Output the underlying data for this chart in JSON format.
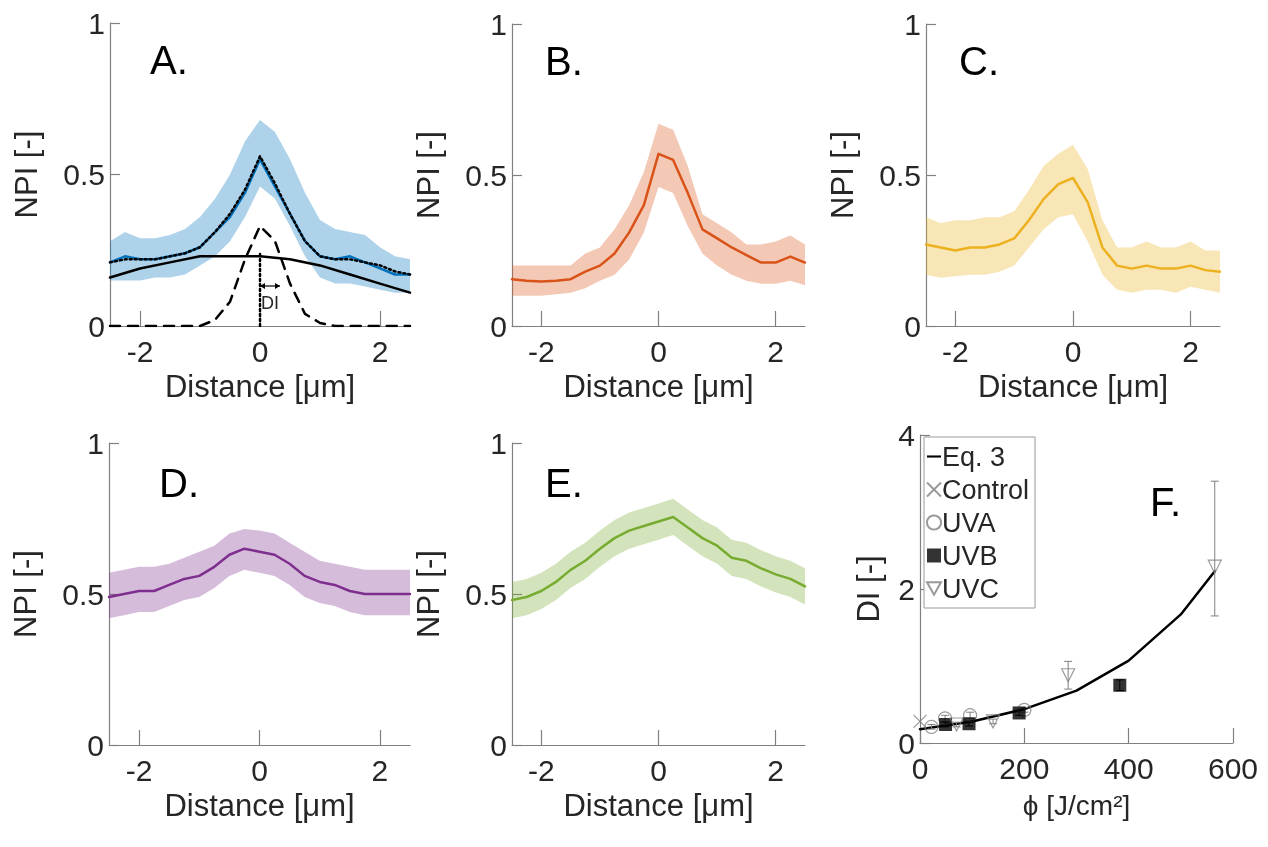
{
  "chart_data": [
    {
      "type": "line",
      "title": "A.",
      "xlabel": "Distance [μm]",
      "ylabel": "NPI [-]",
      "xlim": [
        -2.5,
        2.5
      ],
      "xticks": [
        -2,
        0,
        2
      ],
      "ylim": [
        0,
        1
      ],
      "yticks": [
        0,
        0.5,
        1
      ],
      "x": [
        -2.5,
        -2.25,
        -2,
        -1.75,
        -1.5,
        -1.25,
        -1,
        -0.75,
        -0.5,
        -0.25,
        0,
        0.25,
        0.5,
        0.75,
        1,
        1.25,
        1.5,
        1.75,
        2,
        2.25,
        2.5
      ],
      "annotations": [
        "DI"
      ],
      "series": [
        {
          "color": "#0072bd",
          "values": [
            0.21,
            0.23,
            0.22,
            0.22,
            0.23,
            0.24,
            0.26,
            0.31,
            0.36,
            0.44,
            0.55,
            0.46,
            0.37,
            0.28,
            0.23,
            0.22,
            0.23,
            0.21,
            0.19,
            0.17,
            0.17
          ],
          "lower": [
            0.15,
            0.15,
            0.15,
            0.16,
            0.16,
            0.17,
            0.2,
            0.23,
            0.28,
            0.36,
            0.46,
            0.42,
            0.33,
            0.23,
            0.16,
            0.14,
            0.14,
            0.13,
            0.12,
            0.11,
            0.11
          ],
          "upper": [
            0.28,
            0.31,
            0.29,
            0.29,
            0.3,
            0.32,
            0.36,
            0.42,
            0.5,
            0.61,
            0.68,
            0.64,
            0.55,
            0.44,
            0.35,
            0.32,
            0.31,
            0.3,
            0.26,
            0.23,
            0.22
          ]
        },
        {
          "color": "#000000",
          "line_style": "dotted",
          "values": [
            0.21,
            0.22,
            0.22,
            0.22,
            0.23,
            0.24,
            0.26,
            0.31,
            0.37,
            0.45,
            0.56,
            0.47,
            0.37,
            0.28,
            0.23,
            0.22,
            0.22,
            0.21,
            0.2,
            0.18,
            0.17
          ]
        },
        {
          "color": "#000000",
          "line_style": "solid",
          "x": [
            -2.5,
            -2,
            -1.5,
            -1,
            -0.5,
            0,
            0.5,
            1,
            1.5,
            2,
            2.5
          ],
          "values": [
            0.16,
            0.19,
            0.21,
            0.23,
            0.23,
            0.23,
            0.22,
            0.2,
            0.17,
            0.14,
            0.11
          ]
        },
        {
          "color": "#000000",
          "line_style": "dashed",
          "x": [
            -2.5,
            -1,
            -0.75,
            -0.5,
            -0.25,
            0,
            0.25,
            0.5,
            0.75,
            1,
            1.25,
            2.5
          ],
          "values": [
            0,
            0,
            0.02,
            0.08,
            0.22,
            0.33,
            0.28,
            0.14,
            0.04,
            0.01,
            0,
            0
          ]
        },
        {
          "color": "#000000",
          "line_style": "dotted",
          "x": [
            0,
            0
          ],
          "values": [
            0,
            0.24
          ]
        }
      ]
    },
    {
      "type": "line",
      "title": "B.",
      "xlabel": "Distance [μm]",
      "ylabel": "NPI [-]",
      "xlim": [
        -2.5,
        2.5
      ],
      "xticks": [
        -2,
        0,
        2
      ],
      "ylim": [
        0,
        1
      ],
      "yticks": [
        0,
        0.5,
        1
      ],
      "x": [
        -2.5,
        -2.25,
        -2,
        -1.75,
        -1.5,
        -1.25,
        -1,
        -0.75,
        -0.5,
        -0.25,
        0,
        0.25,
        0.5,
        0.75,
        1,
        1.25,
        1.5,
        1.75,
        2,
        2.25,
        2.5
      ],
      "series": [
        {
          "color": "#d95319",
          "values": [
            0.155,
            0.15,
            0.147,
            0.15,
            0.155,
            0.18,
            0.2,
            0.24,
            0.31,
            0.4,
            0.57,
            0.55,
            0.44,
            0.32,
            0.29,
            0.26,
            0.235,
            0.21,
            0.21,
            0.23,
            0.21
          ],
          "lower": [
            0.1,
            0.1,
            0.1,
            0.105,
            0.11,
            0.125,
            0.15,
            0.17,
            0.22,
            0.31,
            0.46,
            0.44,
            0.33,
            0.24,
            0.2,
            0.17,
            0.15,
            0.14,
            0.14,
            0.15,
            0.135
          ],
          "upper": [
            0.2,
            0.2,
            0.2,
            0.2,
            0.2,
            0.24,
            0.26,
            0.32,
            0.4,
            0.51,
            0.67,
            0.65,
            0.53,
            0.37,
            0.34,
            0.31,
            0.27,
            0.27,
            0.28,
            0.3,
            0.27
          ]
        }
      ]
    },
    {
      "type": "line",
      "title": "C.",
      "xlabel": "Distance [μm]",
      "ylabel": "NPI [-]",
      "xlim": [
        -2.5,
        2.5
      ],
      "xticks": [
        -2,
        0,
        2
      ],
      "ylim": [
        0,
        1
      ],
      "yticks": [
        0,
        0.5,
        1
      ],
      "x": [
        -2.5,
        -2.25,
        -2,
        -1.75,
        -1.5,
        -1.25,
        -1,
        -0.75,
        -0.5,
        -0.25,
        0,
        0.25,
        0.5,
        0.75,
        1,
        1.25,
        1.5,
        1.75,
        2,
        2.25,
        2.5
      ],
      "series": [
        {
          "color": "#edb120",
          "values": [
            0.27,
            0.26,
            0.25,
            0.26,
            0.26,
            0.27,
            0.29,
            0.35,
            0.42,
            0.47,
            0.49,
            0.41,
            0.26,
            0.2,
            0.19,
            0.2,
            0.19,
            0.19,
            0.2,
            0.185,
            0.18
          ],
          "lower": [
            0.17,
            0.16,
            0.165,
            0.17,
            0.17,
            0.18,
            0.2,
            0.26,
            0.32,
            0.36,
            0.37,
            0.28,
            0.17,
            0.12,
            0.11,
            0.12,
            0.12,
            0.11,
            0.13,
            0.12,
            0.11
          ],
          "upper": [
            0.36,
            0.34,
            0.35,
            0.35,
            0.36,
            0.36,
            0.38,
            0.45,
            0.53,
            0.57,
            0.6,
            0.52,
            0.35,
            0.26,
            0.26,
            0.28,
            0.26,
            0.26,
            0.28,
            0.25,
            0.25
          ]
        }
      ]
    },
    {
      "type": "line",
      "title": "D.",
      "xlabel": "Distance [μm]",
      "ylabel": "NPI [-]",
      "xlim": [
        -2.5,
        2.5
      ],
      "xticks": [
        -2,
        0,
        2
      ],
      "ylim": [
        0,
        1
      ],
      "yticks": [
        0,
        0.5,
        1
      ],
      "x": [
        -2.5,
        -2.25,
        -2,
        -1.75,
        -1.5,
        -1.25,
        -1,
        -0.75,
        -0.5,
        -0.25,
        0,
        0.25,
        0.5,
        0.75,
        1,
        1.25,
        1.5,
        1.75,
        2,
        2.25,
        2.5
      ],
      "series": [
        {
          "color": "#7e2f8e",
          "values": [
            0.49,
            0.5,
            0.51,
            0.51,
            0.53,
            0.55,
            0.56,
            0.59,
            0.63,
            0.65,
            0.64,
            0.63,
            0.6,
            0.56,
            0.54,
            0.53,
            0.51,
            0.5,
            0.5,
            0.5,
            0.5
          ],
          "lower": [
            0.42,
            0.43,
            0.44,
            0.44,
            0.46,
            0.48,
            0.49,
            0.52,
            0.56,
            0.58,
            0.57,
            0.56,
            0.53,
            0.49,
            0.47,
            0.46,
            0.44,
            0.43,
            0.43,
            0.43,
            0.43
          ],
          "upper": [
            0.57,
            0.58,
            0.59,
            0.59,
            0.6,
            0.62,
            0.64,
            0.66,
            0.7,
            0.715,
            0.71,
            0.7,
            0.67,
            0.64,
            0.61,
            0.6,
            0.59,
            0.58,
            0.58,
            0.58,
            0.58
          ]
        }
      ]
    },
    {
      "type": "line",
      "title": "E.",
      "xlabel": "Distance [μm]",
      "ylabel": "NPI [-]",
      "xlim": [
        -2.5,
        2.5
      ],
      "xticks": [
        -2,
        0,
        2
      ],
      "ylim": [
        0,
        1
      ],
      "yticks": [
        0,
        0.5,
        1
      ],
      "x": [
        -2.5,
        -2.25,
        -2,
        -1.75,
        -1.5,
        -1.25,
        -1,
        -0.75,
        -0.5,
        -0.25,
        0,
        0.25,
        0.5,
        0.75,
        1,
        1.25,
        1.5,
        1.75,
        2,
        2.25,
        2.5
      ],
      "series": [
        {
          "color": "#77ac30",
          "values": [
            0.48,
            0.49,
            0.51,
            0.54,
            0.58,
            0.61,
            0.65,
            0.685,
            0.71,
            0.725,
            0.74,
            0.755,
            0.72,
            0.685,
            0.66,
            0.62,
            0.61,
            0.585,
            0.565,
            0.55,
            0.525
          ],
          "lower": [
            0.42,
            0.43,
            0.45,
            0.48,
            0.52,
            0.55,
            0.59,
            0.625,
            0.65,
            0.665,
            0.68,
            0.695,
            0.66,
            0.625,
            0.6,
            0.56,
            0.55,
            0.525,
            0.505,
            0.49,
            0.465
          ],
          "upper": [
            0.54,
            0.55,
            0.57,
            0.6,
            0.64,
            0.67,
            0.71,
            0.745,
            0.77,
            0.785,
            0.8,
            0.815,
            0.78,
            0.745,
            0.72,
            0.68,
            0.67,
            0.645,
            0.625,
            0.61,
            0.585
          ]
        }
      ]
    },
    {
      "type": "scatter",
      "title": "F.",
      "xlabel": "ϕ [J/cm²]",
      "ylabel": "DI [-]",
      "xlim": [
        0,
        600
      ],
      "xticks": [
        0,
        200,
        400,
        600
      ],
      "ylim": [
        0,
        4
      ],
      "yticks": [
        0,
        2,
        4
      ],
      "legend": "top left",
      "series": [
        {
          "name": "Eq. 3",
          "type": "line",
          "color": "#000000",
          "x": [
            0,
            100,
            200,
            300,
            400,
            500,
            565
          ],
          "values": [
            0.18,
            0.28,
            0.44,
            0.68,
            1.07,
            1.67,
            2.23
          ]
        },
        {
          "name": "Control",
          "color": "#808080",
          "marker": "cross",
          "x": [
            0
          ],
          "values": [
            0.28
          ]
        },
        {
          "name": "UVA",
          "color": "#808080",
          "marker": "circle",
          "x": [
            22,
            48,
            96,
            200
          ],
          "values": [
            0.21,
            0.32,
            0.36,
            0.43
          ],
          "errors": [
            0.03,
            0.04,
            0.04,
            0.03
          ]
        },
        {
          "name": "UVB",
          "color": "#000000",
          "marker": "square",
          "x": [
            49,
            94,
            190,
            383
          ],
          "values": [
            0.24,
            0.25,
            0.39,
            0.75
          ],
          "errors": [
            0.03,
            0.03,
            0.03,
            0.07
          ]
        },
        {
          "name": "UVC",
          "color": "#808080",
          "marker": "triangle",
          "x": [
            70,
            140,
            284,
            565
          ],
          "values": [
            0.24,
            0.28,
            0.88,
            2.29
          ],
          "errors": [
            0.03,
            0.03,
            0.18,
            [
              1.65,
              3.4
            ]
          ]
        }
      ]
    }
  ]
}
